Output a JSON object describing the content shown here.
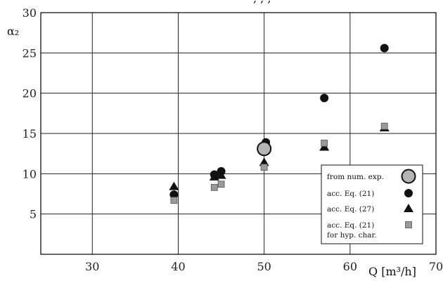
{
  "top_text": ", , ,",
  "chart_data": {
    "type": "scatter",
    "title": "",
    "xlabel": "Q [m³/h]",
    "ylabel": "α₂",
    "xlim": [
      24,
      70
    ],
    "ylim": [
      0,
      30
    ],
    "x_ticks": [
      "30",
      "40",
      "50",
      "60",
      "70"
    ],
    "y_ticks": [
      "5",
      "10",
      "15",
      "20",
      "25",
      "30"
    ],
    "x_tick_values": [
      30,
      40,
      50,
      60,
      70
    ],
    "y_tick_values": [
      5,
      10,
      15,
      20,
      25,
      30
    ],
    "grid": true,
    "legend_placement": "bottom-right",
    "series": [
      {
        "name": "from num. exp.",
        "marker": "large-circle",
        "color": "#b4b4b4",
        "points": [
          [
            50,
            13.1
          ]
        ]
      },
      {
        "name": "acc. Eq. (21)",
        "marker": "circle",
        "color": "#111111",
        "points": [
          [
            39.5,
            7.4
          ],
          [
            44.2,
            9.9
          ],
          [
            45,
            10.3
          ],
          [
            50.2,
            13.9
          ],
          [
            57,
            19.4
          ],
          [
            64,
            25.6
          ]
        ]
      },
      {
        "name": "acc. Eq. (27)",
        "marker": "triangle",
        "color": "#111111",
        "points": [
          [
            39.5,
            8.4
          ],
          [
            44.2,
            9.6
          ],
          [
            45,
            9.8
          ],
          [
            50,
            11.4
          ],
          [
            57,
            13.3
          ],
          [
            64,
            15.7
          ]
        ]
      },
      {
        "name": "acc. Eq. (21)",
        "name_line2": "for hyp. char.",
        "marker": "square",
        "color": "#9a9a9a",
        "points": [
          [
            39.5,
            6.7
          ],
          [
            44.2,
            8.3
          ],
          [
            45,
            8.7
          ],
          [
            50,
            10.8
          ],
          [
            57,
            13.8
          ],
          [
            64,
            15.9
          ]
        ]
      }
    ]
  }
}
